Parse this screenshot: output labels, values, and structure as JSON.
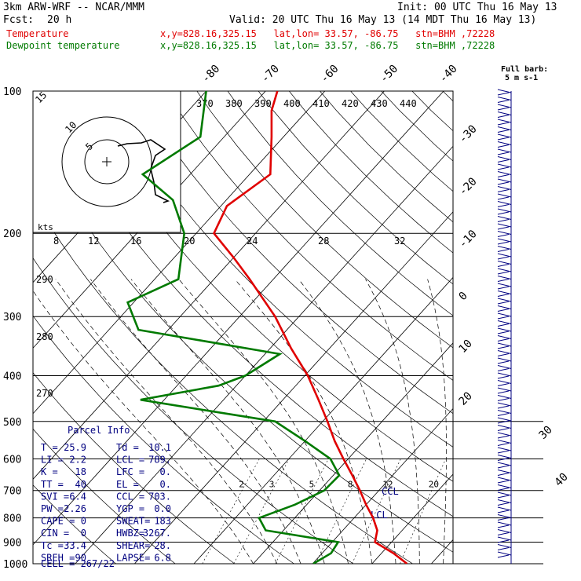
{
  "header": {
    "model": "3km ARW-WRF -- NCAR/MMM",
    "init": "Init: 00 UTC Thu 16 May 13",
    "fcst_label": "Fcst:",
    "fcst_value": "20 h",
    "valid": "Valid: 20 UTC Thu 16 May 13 (14 MDT Thu 16 May 13)",
    "temp_label": "Temperature",
    "dew_label": "Dewpoint temperature",
    "loc_line": "x,y=828.16,325.15   lat,lon= 33.57, -86.75   stn=BHM ,72228"
  },
  "colors": {
    "temperature": "#e00000",
    "dewpoint": "#007a00",
    "panel": "#000080",
    "wind": "#000080"
  },
  "chart_data": {
    "type": "skew-t",
    "pressure_levels": [
      100,
      200,
      300,
      400,
      500,
      600,
      700,
      800,
      900,
      1000
    ],
    "isotherm_labels": [
      "-80",
      "-70",
      "-60",
      "-50",
      "-40",
      "-30",
      "-20",
      "-10",
      "0",
      "10",
      "20",
      "30",
      "40"
    ],
    "theta_labels": [
      "370",
      "380",
      "390",
      "400",
      "410",
      "420",
      "430",
      "440"
    ],
    "theta_left_labels": [
      "290",
      "280",
      "270"
    ],
    "mixing_ratio_labels": [
      "2",
      "3",
      "5",
      "8",
      "12",
      "20"
    ],
    "hodograph_speed_labels": [
      "8",
      "12",
      "16",
      "20",
      "24",
      "28",
      "32"
    ],
    "hodograph_ring_labels": [
      "5",
      "10",
      "15"
    ],
    "hodograph_units": "kts",
    "wind_legend": [
      "Full barb:",
      "5 m s-1"
    ],
    "lcl_label": "LCL",
    "ccl_label": "CCL",
    "temperature": [
      {
        "p": 1000,
        "t": 25.9
      },
      {
        "p": 950,
        "t": 22.0
      },
      {
        "p": 900,
        "t": 17.2
      },
      {
        "p": 850,
        "t": 15.8
      },
      {
        "p": 800,
        "t": 13.2
      },
      {
        "p": 750,
        "t": 10.0
      },
      {
        "p": 700,
        "t": 6.8
      },
      {
        "p": 650,
        "t": 3.2
      },
      {
        "p": 600,
        "t": -0.8
      },
      {
        "p": 550,
        "t": -5.0
      },
      {
        "p": 500,
        "t": -9.2
      },
      {
        "p": 450,
        "t": -14.0
      },
      {
        "p": 400,
        "t": -19.5
      },
      {
        "p": 350,
        "t": -26.5
      },
      {
        "p": 300,
        "t": -34.0
      },
      {
        "p": 250,
        "t": -44.0
      },
      {
        "p": 225,
        "t": -50.0
      },
      {
        "p": 200,
        "t": -57.0
      },
      {
        "p": 175,
        "t": -59.0
      },
      {
        "p": 150,
        "t": -56.5
      },
      {
        "p": 125,
        "t": -62.0
      },
      {
        "p": 110,
        "t": -66.0
      },
      {
        "p": 100,
        "t": -68.0
      }
    ],
    "dewpoint": [
      {
        "p": 1000,
        "t": 10.1
      },
      {
        "p": 950,
        "t": 11.5
      },
      {
        "p": 900,
        "t": 11.0
      },
      {
        "p": 850,
        "t": -3.0
      },
      {
        "p": 800,
        "t": -6.0
      },
      {
        "p": 750,
        "t": -2.0
      },
      {
        "p": 700,
        "t": 0.8
      },
      {
        "p": 650,
        "t": 1.0
      },
      {
        "p": 600,
        "t": -3.0
      },
      {
        "p": 550,
        "t": -10.0
      },
      {
        "p": 500,
        "t": -18.0
      },
      {
        "p": 450,
        "t": -44.0
      },
      {
        "p": 420,
        "t": -33.0
      },
      {
        "p": 400,
        "t": -30.0
      },
      {
        "p": 360,
        "t": -27.5
      },
      {
        "p": 320,
        "t": -55.0
      },
      {
        "p": 280,
        "t": -61.0
      },
      {
        "p": 250,
        "t": -56.0
      },
      {
        "p": 200,
        "t": -62.0
      },
      {
        "p": 170,
        "t": -69.0
      },
      {
        "p": 150,
        "t": -78.0
      },
      {
        "p": 125,
        "t": -74.0
      },
      {
        "p": 100,
        "t": -80.0
      }
    ]
  },
  "parcel": {
    "title": "Parcel Info",
    "rows": [
      [
        "T  =",
        "25.9",
        "Td =",
        "10.1"
      ],
      [
        "LI =",
        "2.2",
        "LCL =",
        "789."
      ],
      [
        "K  =",
        "18",
        "LFC =",
        "0."
      ],
      [
        "TT =",
        "40",
        "EL =",
        "0."
      ],
      [
        "SVI =",
        "6.4",
        "CCL =",
        "703."
      ],
      [
        "PW =",
        "2.26",
        "YGP =",
        "0.0"
      ],
      [
        "CAPE =",
        "0",
        "SWEAT=",
        "183"
      ],
      [
        "CIN =",
        "0",
        "HWBZ=",
        "3267."
      ],
      [
        "Tc =",
        "33.4",
        "SHEAR=",
        "28."
      ],
      [
        "SREH =",
        "90",
        "LAPSE=",
        "6.8"
      ]
    ],
    "cell": "CELL = 267/22"
  }
}
